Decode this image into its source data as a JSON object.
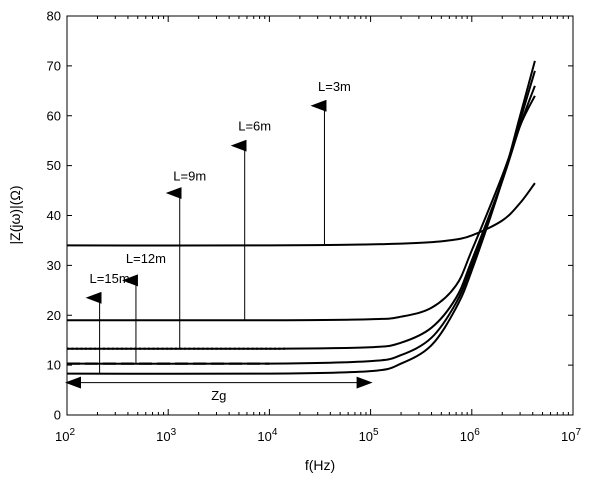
{
  "chart_data": {
    "type": "line",
    "title": "",
    "xlabel": "f(Hz)",
    "ylabel": "|Z(jω)|(Ω)",
    "x_scale": "log",
    "xlim": [
      100,
      10000000
    ],
    "ylim": [
      0,
      80
    ],
    "grid": false,
    "x_ticks": [
      {
        "value": 100,
        "base": "10",
        "exp": "2"
      },
      {
        "value": 1000,
        "base": "10",
        "exp": "3"
      },
      {
        "value": 10000,
        "base": "10",
        "exp": "4"
      },
      {
        "value": 100000,
        "base": "10",
        "exp": "5"
      },
      {
        "value": 1000000,
        "base": "10",
        "exp": "6"
      },
      {
        "value": 10000000,
        "base": "10",
        "exp": "7"
      }
    ],
    "y_ticks": [
      0,
      10,
      20,
      30,
      40,
      50,
      60,
      70,
      80
    ],
    "series": [
      {
        "style": "solid",
        "points": [
          [
            100,
            34
          ],
          [
            10000,
            34
          ],
          [
            100000,
            34.2
          ],
          [
            300000,
            34.5
          ],
          [
            600000,
            35
          ],
          [
            1000000,
            36
          ],
          [
            2000000,
            39
          ],
          [
            3000000,
            42.5
          ],
          [
            4200000,
            46.5
          ]
        ]
      },
      {
        "style": "solid",
        "points": [
          [
            100,
            19
          ],
          [
            10000,
            19
          ],
          [
            100000,
            19.2
          ],
          [
            200000,
            19.7
          ],
          [
            400000,
            21.5
          ],
          [
            700000,
            26
          ],
          [
            1000000,
            33
          ],
          [
            2000000,
            48
          ],
          [
            3000000,
            58
          ],
          [
            4200000,
            64
          ]
        ]
      },
      {
        "style": "solid",
        "points": [
          [
            100,
            13.3
          ],
          [
            10000,
            13.3
          ],
          [
            100000,
            13.6
          ],
          [
            200000,
            14.5
          ],
          [
            400000,
            17.5
          ],
          [
            700000,
            23.5
          ],
          [
            1000000,
            31
          ],
          [
            2000000,
            47
          ],
          [
            3000000,
            58
          ],
          [
            4200000,
            66
          ]
        ]
      },
      {
        "style": "solid",
        "points": [
          [
            100,
            10.3
          ],
          [
            10000,
            10.3
          ],
          [
            100000,
            10.8
          ],
          [
            200000,
            12
          ],
          [
            400000,
            15.5
          ],
          [
            700000,
            22.5
          ],
          [
            1000000,
            30
          ],
          [
            2000000,
            47
          ],
          [
            3000000,
            59
          ],
          [
            4200000,
            69
          ]
        ]
      },
      {
        "style": "solid",
        "points": [
          [
            100,
            8.3
          ],
          [
            10000,
            8.3
          ],
          [
            100000,
            8.8
          ],
          [
            200000,
            10.3
          ],
          [
            400000,
            14
          ],
          [
            700000,
            21.5
          ],
          [
            1000000,
            29
          ],
          [
            2000000,
            47
          ],
          [
            3000000,
            60
          ],
          [
            4200000,
            71
          ]
        ]
      },
      {
        "style": "dotted",
        "points": [
          [
            100,
            13.3
          ],
          [
            15000,
            13.3
          ]
        ]
      },
      {
        "style": "dashed",
        "points": [
          [
            100,
            10.3
          ],
          [
            10000,
            10.3
          ]
        ]
      }
    ],
    "annotations": [
      {
        "label": "L=3m",
        "x": 35000,
        "y_from": 34,
        "y_to": 62,
        "label_y": 65
      },
      {
        "label": "L=6m",
        "x": 5700,
        "y_from": 19,
        "y_to": 54,
        "label_y": 57
      },
      {
        "label": "L=9m",
        "x": 1300,
        "y_from": 13.3,
        "y_to": 44.5,
        "label_y": 47
      },
      {
        "label": "L=12m",
        "x": 480,
        "y_from": 10.3,
        "y_to": 27,
        "label_y": 30.5
      },
      {
        "label": "L=15m",
        "x": 210,
        "y_from": 8.3,
        "y_to": 23.5,
        "label_y": 26.5
      }
    ],
    "span_annotation": {
      "label": "Zg",
      "x_from": 100,
      "x_to": 100000,
      "y": 6.5,
      "label_y": 3
    }
  }
}
